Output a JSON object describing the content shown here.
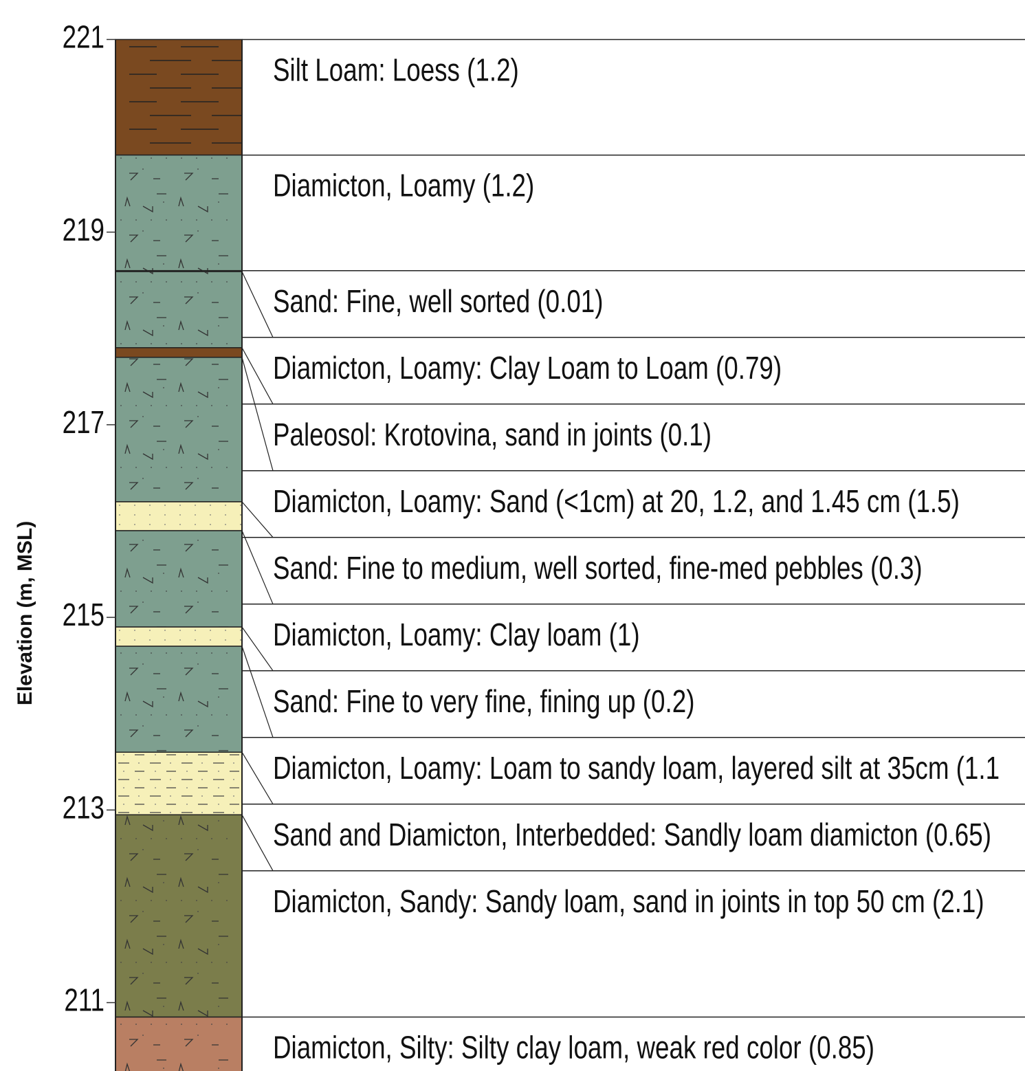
{
  "axis": {
    "label": "Elevation (m, MSL)",
    "ylim": [
      210.29,
      221.41
    ],
    "yticks": [
      221,
      219,
      217,
      215,
      213,
      211
    ]
  },
  "layers": [
    {
      "label": "Silt Loam: Loess (1.2)",
      "thickness": 1.2,
      "pattern": "silt",
      "color": "#7a4920"
    },
    {
      "label": "Diamicton, Loamy (1.2)",
      "thickness": 1.2,
      "pattern": "diamicton",
      "color": "#7e9f8f"
    },
    {
      "label": "Sand: Fine, well sorted (0.01)",
      "thickness": 0.01,
      "pattern": "sand",
      "color": "#f6f0b9"
    },
    {
      "label": "Diamicton, Loamy: Clay Loam to Loam (0.79)",
      "thickness": 0.79,
      "pattern": "diamicton",
      "color": "#7e9f8f"
    },
    {
      "label": "Paleosol: Krotovina, sand in joints (0.1)",
      "thickness": 0.1,
      "pattern": "paleosol",
      "color": "#7a4920"
    },
    {
      "label": "Diamicton, Loamy: Sand (<1cm) at 20, 1.2, and 1.45 cm (1.5)",
      "thickness": 1.5,
      "pattern": "diamicton",
      "color": "#7e9f8f"
    },
    {
      "label": "Sand: Fine to medium, well sorted, fine-med pebbles (0.3)",
      "thickness": 0.3,
      "pattern": "sand",
      "color": "#f6f0b9"
    },
    {
      "label": "Diamicton, Loamy: Clay loam (1)",
      "thickness": 1,
      "pattern": "diamicton",
      "color": "#7e9f8f"
    },
    {
      "label": "Sand: Fine to very fine, fining up (0.2)",
      "thickness": 0.2,
      "pattern": "sand",
      "color": "#f6f0b9"
    },
    {
      "label": "Diamicton, Loamy: Loam to sandy loam, layered silt at 35cm (1.1",
      "thickness": 1.1,
      "pattern": "diamicton",
      "color": "#7e9f8f"
    },
    {
      "label": "Sand and Diamicton, Interbedded: Sandly loam diamicton (0.65)",
      "thickness": 0.65,
      "pattern": "interbedded",
      "color": "#f6f0b9"
    },
    {
      "label": "Diamicton, Sandy: Sandy loam, sand in joints in top 50 cm (2.1)",
      "thickness": 2.1,
      "pattern": "diamicton",
      "color": "#7b7d4b"
    },
    {
      "label": "Diamicton, Silty: Silty clay loam, weak red color (0.85)",
      "thickness": 0.85,
      "pattern": "diamicton",
      "color": "#b97f63"
    }
  ]
}
